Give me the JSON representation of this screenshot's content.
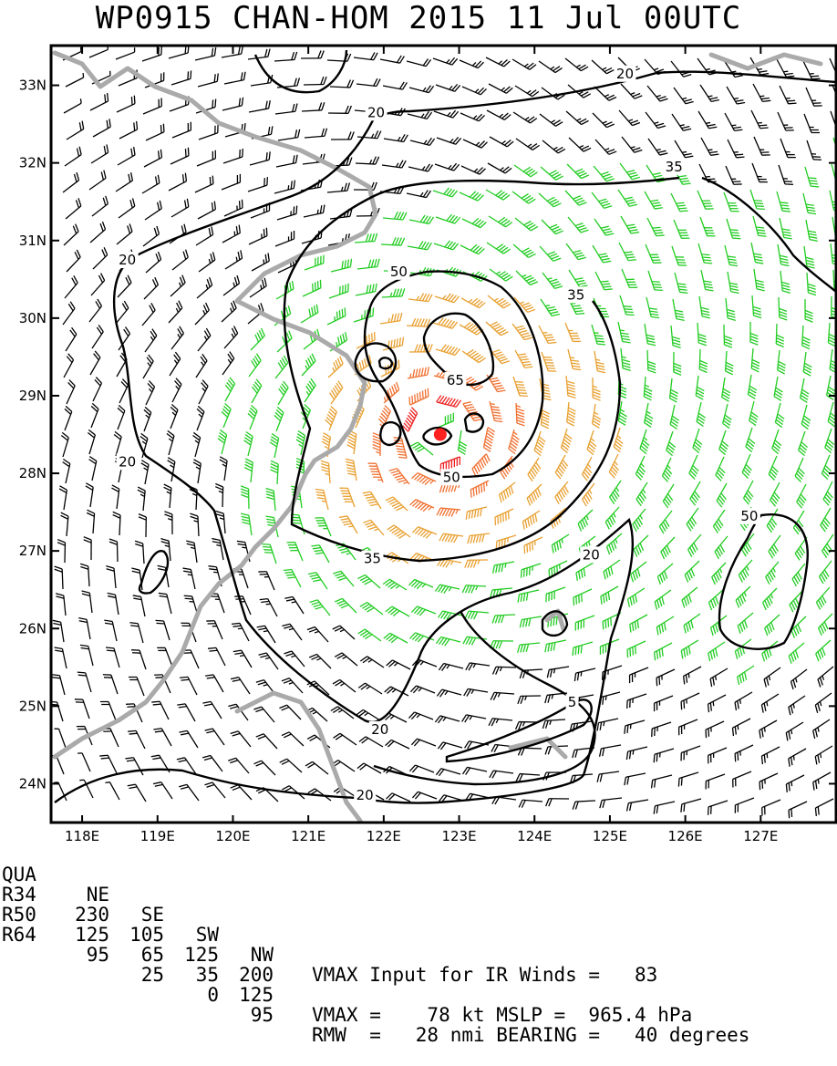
{
  "title": "WP0915   CHAN-HOM 2015 11 Jul 00UTC",
  "chart_data": {
    "type": "contour-map",
    "storm_id": "WP0915",
    "storm_name": "CHAN-HOM",
    "datetime": "2015 11 Jul 00UTC",
    "lon_range": [
      117.6,
      128.0
    ],
    "lat_range": [
      23.5,
      33.5
    ],
    "x_ticks": [
      "118E",
      "119E",
      "120E",
      "121E",
      "122E",
      "123E",
      "124E",
      "125E",
      "126E",
      "127E"
    ],
    "y_ticks": [
      "24N",
      "25N",
      "26N",
      "27N",
      "28N",
      "29N",
      "30N",
      "31N",
      "32N",
      "33N"
    ],
    "storm_center": {
      "lon": 122.75,
      "lat": 28.5,
      "color": "#ff2020"
    },
    "contour_labels": [
      {
        "text": "20",
        "lon": 118.6,
        "lat": 30.75
      },
      {
        "text": "20",
        "lon": 121.9,
        "lat": 32.65
      },
      {
        "text": "20",
        "lon": 125.2,
        "lat": 33.15
      },
      {
        "text": "20",
        "lon": 118.6,
        "lat": 28.15
      },
      {
        "text": "20",
        "lon": 124.75,
        "lat": 26.95
      },
      {
        "text": "20",
        "lon": 121.95,
        "lat": 24.7
      },
      {
        "text": "20",
        "lon": 121.75,
        "lat": 23.85
      },
      {
        "text": "35",
        "lon": 125.85,
        "lat": 31.95
      },
      {
        "text": "35",
        "lon": 124.55,
        "lat": 30.3
      },
      {
        "text": "35",
        "lon": 121.85,
        "lat": 26.9
      },
      {
        "text": "50",
        "lon": 122.2,
        "lat": 30.6
      },
      {
        "text": "50",
        "lon": 122.9,
        "lat": 27.95
      },
      {
        "text": "50",
        "lon": 126.85,
        "lat": 27.45
      },
      {
        "text": "65",
        "lon": 122.95,
        "lat": 29.2
      },
      {
        "text": "5",
        "lon": 124.5,
        "lat": 25.05
      }
    ],
    "wind_colors": {
      "lt35": "#000000",
      "35to50": "#22cc22",
      "50to65": "#e8a030",
      "65to80": "#f07030",
      "gt80": "#ee2222"
    },
    "coast_color": "#aaaaaa"
  },
  "info": {
    "header": {
      "label": "QUA",
      "values": [
        "NE",
        "SE",
        "SW",
        "NW"
      ]
    },
    "rows": [
      {
        "label": "R34",
        "values": [
          "230",
          "105",
          "125",
          "200"
        ]
      },
      {
        "label": "R50",
        "values": [
          "125",
          "65",
          "35",
          "125"
        ]
      },
      {
        "label": "R64",
        "values": [
          "95",
          "25",
          "0",
          "95"
        ]
      }
    ],
    "vmax_ir": "VMAX Input for IR Winds =   83",
    "vmax_mslp": "VMAX =    78 kt MSLP =  965.4 hPa",
    "rmw_bearing": "RMW  =   28 nmi BEARING =   40 degrees"
  }
}
